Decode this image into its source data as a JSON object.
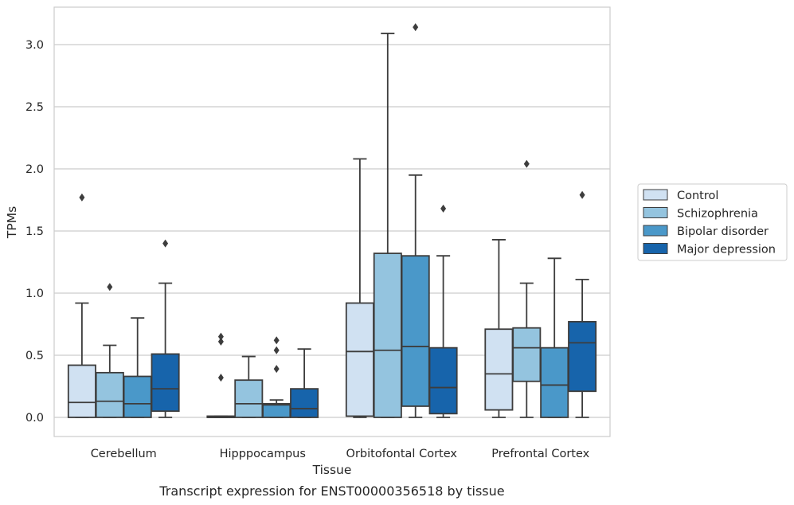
{
  "chart_data": {
    "type": "box",
    "caption": "Transcript expression for ENST00000356518 by tissue",
    "xlabel": "Tissue",
    "ylabel": "TPMs",
    "ylim": [
      -0.15,
      3.31
    ],
    "yticks": [
      "0.0",
      "0.5",
      "1.0",
      "1.5",
      "2.0",
      "2.5",
      "3.0"
    ],
    "grid": "horizontal",
    "legend_position": "right",
    "categories": [
      "Cerebellum",
      "Hipppocampus",
      "Orbitofontal Cortex",
      "Prefrontal Cortex"
    ],
    "series": [
      {
        "name": "Control",
        "color": "#d0e1f2",
        "boxes": [
          {
            "whisker_low": 0.0,
            "q1": 0.0,
            "median": 0.12,
            "q3": 0.42,
            "whisker_high": 0.92,
            "outliers": [
              1.77
            ]
          },
          {
            "whisker_low": 0.0,
            "q1": 0.0,
            "median": 0.0,
            "q3": 0.01,
            "whisker_high": 0.01,
            "outliers": [
              0.32,
              0.61,
              0.65
            ]
          },
          {
            "whisker_low": 0.0,
            "q1": 0.01,
            "median": 0.53,
            "q3": 0.92,
            "whisker_high": 2.08,
            "outliers": []
          },
          {
            "whisker_low": 0.0,
            "q1": 0.06,
            "median": 0.35,
            "q3": 0.71,
            "whisker_high": 1.43,
            "outliers": []
          }
        ]
      },
      {
        "name": "Schizophrenia",
        "color": "#94c4df",
        "boxes": [
          {
            "whisker_low": 0.0,
            "q1": 0.0,
            "median": 0.13,
            "q3": 0.36,
            "whisker_high": 0.58,
            "outliers": [
              1.05
            ]
          },
          {
            "whisker_low": 0.0,
            "q1": 0.0,
            "median": 0.11,
            "q3": 0.3,
            "whisker_high": 0.49,
            "outliers": []
          },
          {
            "whisker_low": 0.0,
            "q1": 0.0,
            "median": 0.54,
            "q3": 1.32,
            "whisker_high": 3.09,
            "outliers": []
          },
          {
            "whisker_low": 0.0,
            "q1": 0.29,
            "median": 0.56,
            "q3": 0.72,
            "whisker_high": 1.08,
            "outliers": [
              2.04
            ]
          }
        ]
      },
      {
        "name": "Bipolar disorder",
        "color": "#4a98c9",
        "boxes": [
          {
            "whisker_low": 0.0,
            "q1": 0.0,
            "median": 0.11,
            "q3": 0.33,
            "whisker_high": 0.8,
            "outliers": []
          },
          {
            "whisker_low": 0.0,
            "q1": 0.0,
            "median": 0.1,
            "q3": 0.11,
            "whisker_high": 0.14,
            "outliers": [
              0.39,
              0.54,
              0.62
            ]
          },
          {
            "whisker_low": 0.0,
            "q1": 0.09,
            "median": 0.57,
            "q3": 1.3,
            "whisker_high": 1.95,
            "outliers": [
              3.14
            ]
          },
          {
            "whisker_low": 0.0,
            "q1": 0.0,
            "median": 0.26,
            "q3": 0.56,
            "whisker_high": 1.28,
            "outliers": []
          }
        ]
      },
      {
        "name": "Major depression",
        "color": "#1764ab",
        "boxes": [
          {
            "whisker_low": 0.0,
            "q1": 0.05,
            "median": 0.23,
            "q3": 0.51,
            "whisker_high": 1.08,
            "outliers": [
              1.4
            ]
          },
          {
            "whisker_low": 0.0,
            "q1": 0.0,
            "median": 0.07,
            "q3": 0.23,
            "whisker_high": 0.55,
            "outliers": []
          },
          {
            "whisker_low": 0.0,
            "q1": 0.03,
            "median": 0.24,
            "q3": 0.56,
            "whisker_high": 1.3,
            "outliers": [
              1.68
            ]
          },
          {
            "whisker_low": 0.0,
            "q1": 0.21,
            "median": 0.6,
            "q3": 0.77,
            "whisker_high": 1.11,
            "outliers": [
              1.79
            ]
          }
        ]
      }
    ]
  }
}
